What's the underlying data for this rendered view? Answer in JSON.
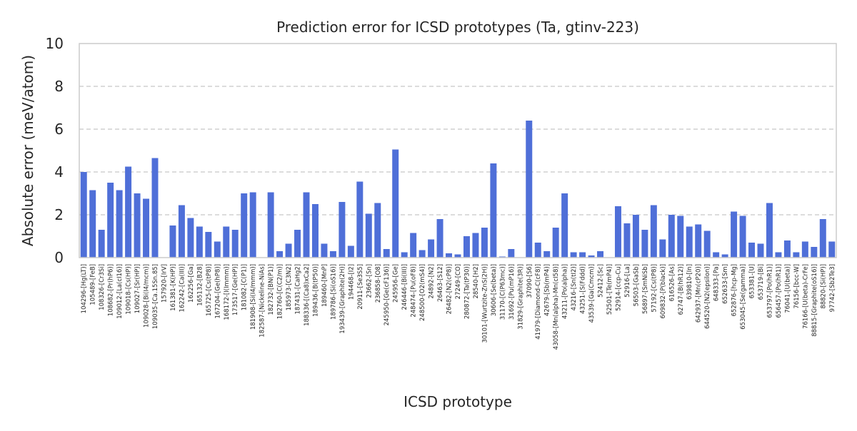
{
  "chart_data": {
    "type": "bar",
    "title": "Prediction error for ICSD prototypes (Ta, gtinv-223)",
    "xlabel": "ICSD prototype",
    "ylabel": "Absolute error (meV/atom)",
    "ylim": [
      0,
      10
    ],
    "yticks": [
      "0",
      "2",
      "4",
      "6",
      "8",
      "10"
    ],
    "grid": "y-dashed",
    "colors": {
      "bar": "#4f6fd8",
      "grid": "#c8c8c8",
      "axis": "#cccccc",
      "text": "#262626"
    },
    "categories": [
      "104296-[Hg(LT)]",
      "105489-[FeB]",
      "108326-[Cr3Si]",
      "108682-[Pr(hP6)]",
      "109012-[La(cI16)]",
      "109018-[Cs(HP)]",
      "109027-[Sr(HP)]",
      "109028-[Bi(I4/mcm)]",
      "109035-[Ca.15Sn.85]",
      "157920-[IrV]",
      "161381-[K(HP)]",
      "162242-[Ca(III)]",
      "162256-[Ga]",
      "165132-[B28]",
      "165725-[Cs(tP8)]",
      "167204-[Ge(hP8)]",
      "168172-[I(Immm)]",
      "173517-[Ge(HP)]",
      "181082-[C(P1)]",
      "181908-[Si(I4/mmm)]",
      "182587-[Nickeline-NiAs]",
      "182732-[BN(P1)]",
      "182760-[C(C2/m)]",
      "185973-[C3N2]",
      "187431-[CaHg2]",
      "188336-[(Ca8)xCa2]",
      "189436-[B(tP50)]",
      "189460-[MnP]",
      "189786-[Si(oS16)]",
      "193439-[Graphite(2H)]",
      "194468-[I2]",
      "20911-[Se3S5]",
      "23662-[Sn]",
      "236858-[O8]",
      "245950-[Ge(cF136)]",
      "245956-[Ge]",
      "246446-[Bi(III)]",
      "248474-[Pu(oF8)]",
      "248500-[O2(mS4)]",
      "24892-[N2]",
      "26463-[S12]",
      "26482-[N2(cP8)]",
      "27249-[CO]",
      "280872-[Ta(tP30)]",
      "28540-[H2]",
      "30101-[Wurtzite-ZnS(2H)]",
      "30606-[Se(beta)]",
      "31170-[C(P63mc)]",
      "31692-[Pu(mP16)]",
      "31829-[Graphite(3R)]",
      "37090-[S6]",
      "41979-[Diamond-C(cF8)]",
      "42679-[Sb(mP4)]",
      "43058-[Mn(alpha)-Mn(cI58)]",
      "43211-[Po(alpha)]",
      "43216-[Sn(tI2)]",
      "43251-[S(Fddd)]",
      "43539-[Ga(Cmcm)]",
      "52412-[Sc]",
      "52501-[Te(mP4)]",
      "52914-[ccp-Cu]",
      "52916-[La]",
      "56503-[GaSb]",
      "56897-[SmNiSb]",
      "57192-[Cs(tP8)]",
      "609832-[P(black)]",
      "616526-[As]",
      "62747-[B(hR12)]",
      "639810-[In]",
      "642937-[Mn(cP20)]",
      "644520-[N2(epsilon)]",
      "648333-[Pa]",
      "652633-[Sm]",
      "652876-[hcp-Mg]",
      "653045-[Se(gamma)]",
      "653381-[U]",
      "653719-[Bi]",
      "653797-[Po(hR1)]",
      "656457-[Po(hR1)]",
      "76041-[U(beta)]",
      "76156-[bcc-W]",
      "76166-[U(beta)-CrFe]",
      "88815-[Graphite(oS16)]",
      "88820-[Si(HP)]",
      "97742-[Sb2Te3]"
    ],
    "values": [
      4.0,
      3.15,
      1.3,
      3.5,
      3.15,
      4.25,
      3.0,
      2.75,
      4.65,
      0.0,
      1.5,
      2.45,
      1.85,
      1.45,
      1.2,
      0.75,
      1.45,
      1.3,
      3.0,
      3.05,
      0.0,
      3.05,
      0.3,
      0.65,
      1.3,
      3.05,
      2.5,
      0.65,
      0.3,
      2.6,
      0.55,
      3.55,
      2.05,
      2.55,
      0.4,
      5.05,
      0.25,
      1.15,
      0.35,
      0.85,
      1.8,
      0.2,
      0.15,
      1.0,
      1.15,
      1.4,
      4.4,
      0.05,
      0.4,
      0.0,
      6.4,
      0.7,
      0.3,
      1.4,
      3.0,
      0.25,
      0.25,
      0.1,
      0.3,
      0.0,
      2.4,
      1.6,
      2.0,
      1.3,
      2.45,
      0.85,
      2.0,
      1.95,
      1.45,
      1.55,
      1.25,
      0.25,
      0.15,
      2.15,
      1.95,
      0.7,
      0.65,
      2.55,
      0.25,
      0.8,
      0.25,
      0.75,
      0.5,
      1.8,
      0.75
    ]
  }
}
